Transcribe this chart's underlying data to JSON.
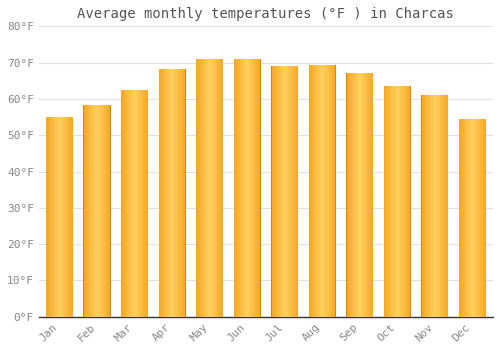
{
  "title": "Average monthly temperatures (°F ) in Charcas",
  "months": [
    "Jan",
    "Feb",
    "Mar",
    "Apr",
    "May",
    "Jun",
    "Jul",
    "Aug",
    "Sep",
    "Oct",
    "Nov",
    "Dec"
  ],
  "values": [
    55.0,
    58.2,
    62.5,
    68.2,
    71.0,
    71.0,
    69.0,
    69.2,
    67.0,
    63.5,
    61.0,
    54.5
  ],
  "ylim": [
    0,
    80
  ],
  "yticks": [
    0,
    10,
    20,
    30,
    40,
    50,
    60,
    70,
    80
  ],
  "ytick_labels": [
    "0°F",
    "10°F",
    "20°F",
    "30°F",
    "40°F",
    "50°F",
    "60°F",
    "70°F",
    "80°F"
  ],
  "background_color": "#ffffff",
  "grid_color": "#e0e0e0",
  "title_fontsize": 10,
  "tick_fontsize": 8,
  "tick_color": "#888888",
  "bar_center_color": "#FFB300",
  "bar_edge_color": "#F57F17",
  "bar_light_color": "#FFD54F",
  "spine_color": "#333333",
  "bar_width": 0.72
}
